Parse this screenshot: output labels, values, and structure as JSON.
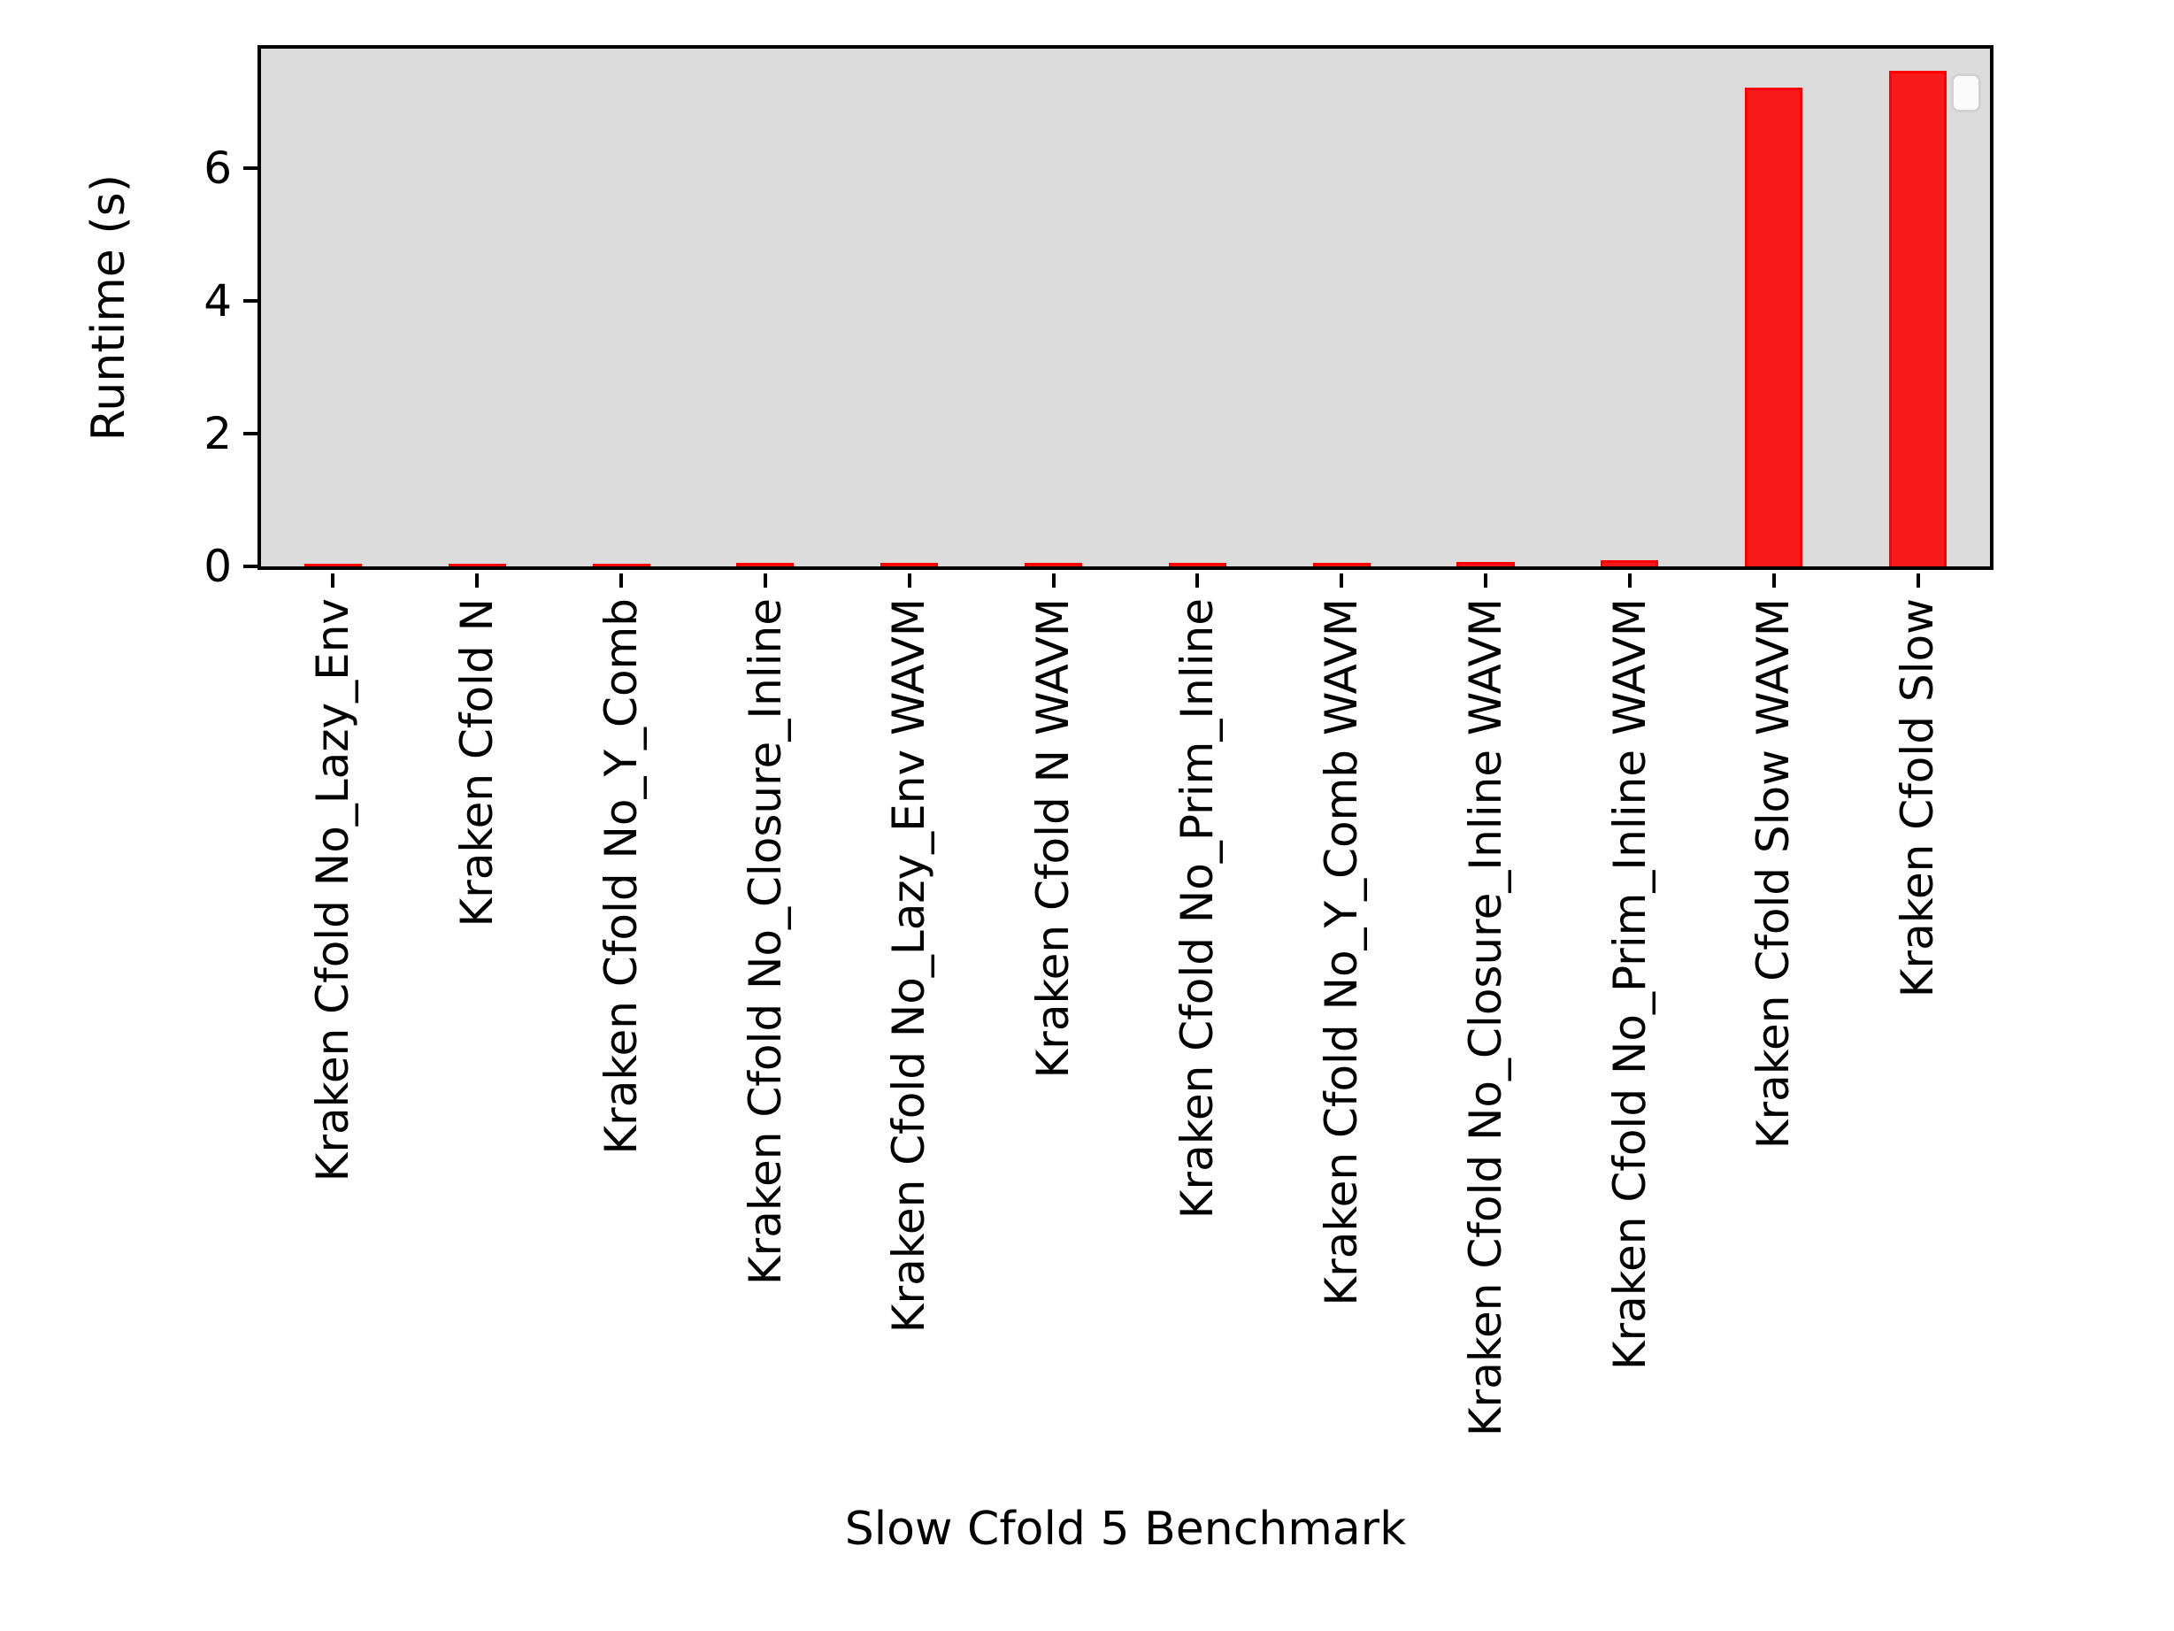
{
  "chart_data": {
    "type": "bar",
    "title": "",
    "xlabel": "Slow Cfold 5 Benchmark",
    "ylabel": "Runtime (s)",
    "categories": [
      "Kraken Cfold No_Lazy_Env",
      "Kraken Cfold N",
      "Kraken Cfold No_Y_Comb",
      "Kraken Cfold No_Closure_Inline",
      "Kraken Cfold No_Lazy_Env WAVM",
      "Kraken Cfold N WAVM",
      "Kraken Cfold No_Prim_Inline",
      "Kraken Cfold No_Y_Comb WAVM",
      "Kraken Cfold No_Closure_Inline WAVM",
      "Kraken Cfold No_Prim_Inline WAVM",
      "Kraken Cfold Slow WAVM",
      "Kraken Cfold Slow"
    ],
    "values": [
      0.04,
      0.04,
      0.03,
      0.05,
      0.05,
      0.05,
      0.05,
      0.05,
      0.07,
      0.09,
      7.21,
      7.47
    ],
    "yticks": [
      0,
      2,
      4,
      6
    ],
    "ylim": [
      0,
      7.8
    ],
    "grid": false,
    "legend": {
      "visible": true,
      "entries": []
    },
    "colors": {
      "bar_fill": "#f81a1a",
      "bar_edge": "#ff0000",
      "plot_background": "#dcdcdc",
      "spine": "#000000",
      "legend_background": "#fbfbfb",
      "legend_border": "#d2d2d2"
    }
  }
}
